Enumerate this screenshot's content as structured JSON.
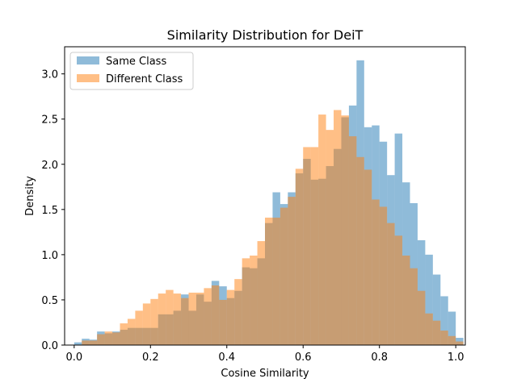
{
  "chart_data": {
    "type": "bar",
    "title": "Similarity Distribution for DeiT",
    "xlabel": "Cosine Similarity",
    "ylabel": "Density",
    "xlim": [
      -0.025,
      1.025
    ],
    "ylim": [
      0,
      3.3
    ],
    "x_ticks": [
      "0.0",
      "0.2",
      "0.4",
      "0.6",
      "0.8",
      "1.0"
    ],
    "x_tick_values": [
      0,
      0.2,
      0.4,
      0.6,
      0.8,
      1.0
    ],
    "y_ticks": [
      "0.0",
      "0.5",
      "1.0",
      "1.5",
      "2.0",
      "2.5",
      "3.0"
    ],
    "y_tick_values": [
      0,
      0.5,
      1.0,
      1.5,
      2.0,
      2.5,
      3.0
    ],
    "grid": false,
    "legend_position": "top-left",
    "bin_start": 0.0,
    "bin_width": 0.02,
    "series": [
      {
        "name": "Same Class",
        "color": "#1f77b4",
        "opacity": 0.5,
        "values": [
          0.03,
          0.07,
          0.06,
          0.15,
          0.13,
          0.15,
          0.17,
          0.19,
          0.19,
          0.19,
          0.19,
          0.34,
          0.34,
          0.38,
          0.56,
          0.38,
          0.56,
          0.48,
          0.71,
          0.65,
          0.52,
          0.6,
          0.86,
          0.85,
          0.96,
          1.35,
          1.69,
          1.56,
          1.69,
          1.9,
          2.06,
          1.83,
          1.84,
          1.98,
          2.17,
          2.52,
          2.65,
          3.15,
          2.41,
          2.43,
          2.25,
          1.88,
          2.34,
          1.8,
          1.57,
          1.16,
          1.0,
          0.78,
          0.54,
          0.37,
          0.08
        ]
      },
      {
        "name": "Different Class",
        "color": "#ff7f0e",
        "opacity": 0.5,
        "values": [
          0.0,
          0.05,
          0.05,
          0.12,
          0.15,
          0.14,
          0.24,
          0.29,
          0.38,
          0.46,
          0.51,
          0.57,
          0.61,
          0.57,
          0.52,
          0.58,
          0.58,
          0.63,
          0.66,
          0.5,
          0.61,
          0.73,
          0.96,
          0.99,
          1.15,
          1.41,
          1.41,
          1.52,
          1.64,
          1.95,
          2.19,
          2.19,
          2.55,
          2.38,
          2.6,
          2.54,
          2.31,
          2.08,
          1.94,
          1.61,
          1.53,
          1.35,
          1.21,
          0.99,
          0.85,
          0.6,
          0.35,
          0.27,
          0.16,
          0.1,
          0.04
        ]
      }
    ]
  }
}
